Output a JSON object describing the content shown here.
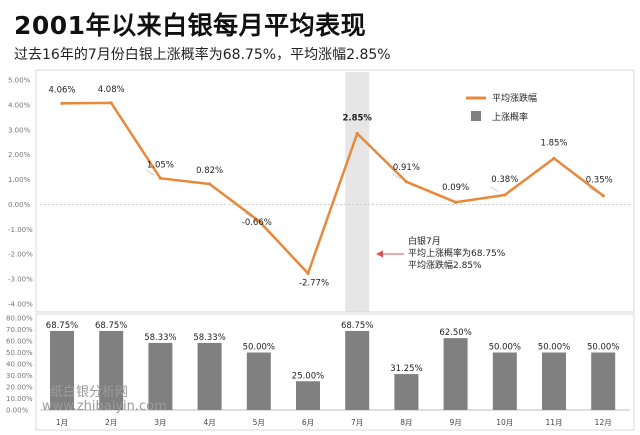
{
  "title": "2001年以来白银每月平均表现",
  "subtitle": "过去16年的7月份白银上涨概率为68.75%，平均涨幅2.85%",
  "colors": {
    "line": "#E8883A",
    "bar": "#808080",
    "highlight_band": "#E6E6E6",
    "highlight_text": "#D9534F",
    "arrow": "#D9534F"
  },
  "chart_data": [
    {
      "type": "line",
      "name": "平均涨跌幅",
      "categories": [
        "1月",
        "2月",
        "3月",
        "4月",
        "5月",
        "6月",
        "7月",
        "8月",
        "9月",
        "10月",
        "11月",
        "12月"
      ],
      "values": [
        4.06,
        4.08,
        1.05,
        0.82,
        -0.66,
        -2.77,
        2.85,
        0.91,
        0.09,
        0.38,
        1.85,
        0.35
      ],
      "labels": [
        "4.06%",
        "4.08%",
        "1.05%",
        "0.82%",
        "-0.66%",
        "-2.77%",
        "2.85%",
        "0.91%",
        "0.09%",
        "0.38%",
        "1.85%",
        "0.35%"
      ],
      "yticks": [
        "5.00%",
        "4.00%",
        "3.00%",
        "2.00%",
        "1.00%",
        "0.00%",
        "-1.00%",
        "-2.00%",
        "-3.00%",
        "-4.00%"
      ],
      "ylim": [
        -4,
        5
      ],
      "highlight_index": 6
    },
    {
      "type": "bar",
      "name": "上涨概率",
      "categories": [
        "1月",
        "2月",
        "3月",
        "4月",
        "5月",
        "6月",
        "7月",
        "8月",
        "9月",
        "10月",
        "11月",
        "12月"
      ],
      "values": [
        68.75,
        68.75,
        58.33,
        58.33,
        50.0,
        25.0,
        68.75,
        31.25,
        62.5,
        50.0,
        50.0,
        50.0
      ],
      "labels": [
        "68.75%",
        "68.75%",
        "58.33%",
        "58.33%",
        "50.00%",
        "25.00%",
        "68.75%",
        "31.25%",
        "62.50%",
        "50.00%",
        "50.00%",
        "50.00%"
      ],
      "yticks": [
        "80.00%",
        "70.00%",
        "60.00%",
        "50.00%",
        "40.00%",
        "30.00%",
        "20.00%",
        "10.00%",
        "0.00%"
      ],
      "ylim": [
        0,
        80
      ],
      "highlight_index": 6
    }
  ],
  "legend": {
    "line_label": "平均涨跌幅",
    "bar_label": "上涨概率"
  },
  "annotation": [
    "白银7月",
    "平均上涨概率为68.75%",
    "平均涨跌幅2.85%"
  ],
  "watermark": [
    "纸白银分析网",
    "www.zhibaiyin.com"
  ]
}
